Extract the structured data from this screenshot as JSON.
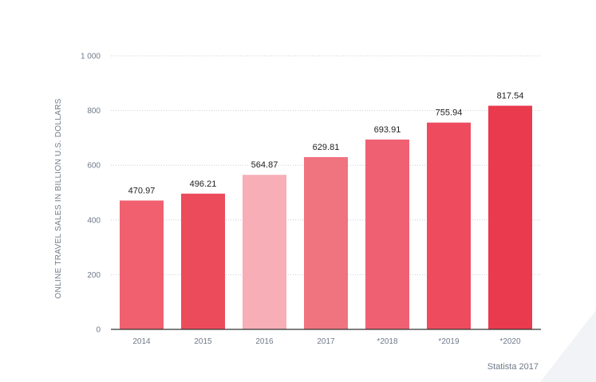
{
  "chart_data": {
    "type": "bar",
    "title": "",
    "xlabel": "",
    "ylabel": "ONLINE TRAVEL SALES IN BILLION U.S. DOLLARS",
    "categories": [
      "2014",
      "2015",
      "2016",
      "2017",
      "*2018",
      "*2019",
      "*2020"
    ],
    "values": [
      470.97,
      496.21,
      564.87,
      629.81,
      693.91,
      755.94,
      817.54
    ],
    "value_labels": [
      "470.97",
      "496.21",
      "564.87",
      "629.81",
      "693.91",
      "755.94",
      "817.54"
    ],
    "ylim": [
      0,
      1000
    ],
    "yticks": [
      0,
      200,
      400,
      600,
      800,
      1000
    ],
    "ytick_labels": [
      "0",
      "200",
      "400",
      "600",
      "800",
      "1 000"
    ],
    "grid": true,
    "bar_colors": [
      "#f0606f",
      "#ec4b5c",
      "#f7aeb6",
      "#f07380",
      "#ef6172",
      "#ee4c5e",
      "#ea3a4e"
    ]
  },
  "source_label": "Statista 2017"
}
